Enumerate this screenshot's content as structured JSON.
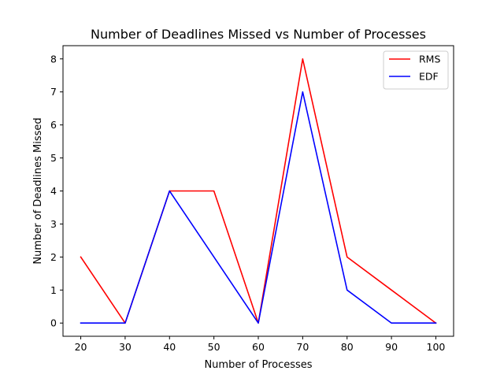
{
  "chart_data": {
    "type": "line",
    "title": "Number of Deadlines Missed vs Number of Processes",
    "xlabel": "Number of Processes",
    "ylabel": "Number of Deadlines Missed",
    "x": [
      20,
      30,
      40,
      50,
      60,
      70,
      80,
      90,
      100
    ],
    "xticks": [
      "20",
      "30",
      "40",
      "50",
      "60",
      "70",
      "80",
      "90",
      "100"
    ],
    "yticks": [
      "0",
      "1",
      "2",
      "3",
      "4",
      "5",
      "6",
      "7",
      "8"
    ],
    "xlim": [
      16,
      104
    ],
    "ylim": [
      -0.4,
      8.4
    ],
    "grid": false,
    "legend_position": "top-right",
    "series": [
      {
        "name": "RMS",
        "color": "#ff0000",
        "values": [
          2,
          0,
          4,
          4,
          0,
          8,
          2,
          1,
          0
        ]
      },
      {
        "name": "EDF",
        "color": "#0000ff",
        "values": [
          0,
          0,
          4,
          2,
          0,
          7,
          1,
          0,
          0
        ]
      }
    ]
  }
}
